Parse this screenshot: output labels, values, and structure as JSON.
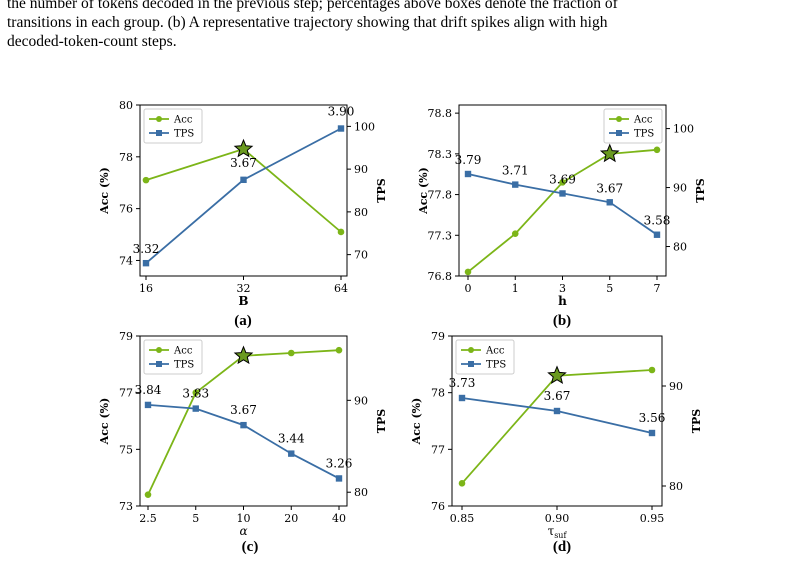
{
  "caption": {
    "lines": [
      "the number of tokens decoded in the previous step; percentages above boxes denote the fraction of",
      "transitions in each group. (b) A representative trajectory showing that drift spikes align with high",
      "decoded-token-count steps."
    ]
  },
  "colors": {
    "acc": "#7cb518",
    "tps": "#3a6ea5",
    "star_fill": "#6a9a20"
  },
  "chart_data": [
    {
      "type": "line",
      "panel_label": "(a)",
      "x_categories": [
        "16",
        "32",
        "64"
      ],
      "xlabel": "B",
      "ylabel_left": "Acc (%)",
      "ylabel_right": "TPS",
      "ylim_left": [
        73.4,
        80.0
      ],
      "yticks_left": [
        "74",
        "76",
        "78",
        "80"
      ],
      "ylim_right": [
        65.0,
        105.0
      ],
      "yticks_right": [
        "70",
        "80",
        "90",
        "100"
      ],
      "legend": "top-left",
      "series": [
        {
          "name": "Acc",
          "axis": "left",
          "marker": "circle",
          "values": [
            77.1,
            78.3,
            75.1
          ]
        },
        {
          "name": "TPS",
          "axis": "right",
          "marker": "square",
          "values": [
            68.0,
            87.5,
            99.5
          ]
        }
      ],
      "tps_labels": [
        "3.32",
        "3.67",
        "3.90"
      ],
      "star_index": 1
    },
    {
      "type": "line",
      "panel_label": "(b)",
      "x_categories": [
        "0",
        "1",
        "3",
        "5",
        "7"
      ],
      "xlabel": "h",
      "ylabel_left": "Acc (%)",
      "ylabel_right": "TPS",
      "ylim_left": [
        76.8,
        78.9
      ],
      "yticks_left": [
        "76.8",
        "77.3",
        "77.8",
        "78.3",
        "78.8"
      ],
      "ylim_right": [
        75.0,
        104.0
      ],
      "yticks_right": [
        "80",
        "90",
        "100"
      ],
      "legend": "top-right",
      "series": [
        {
          "name": "Acc",
          "axis": "left",
          "marker": "circle",
          "values": [
            76.85,
            77.32,
            77.95,
            78.3,
            78.35
          ]
        },
        {
          "name": "TPS",
          "axis": "right",
          "marker": "square",
          "values": [
            92.3,
            90.5,
            89.0,
            87.5,
            82.0
          ]
        }
      ],
      "tps_labels": [
        "3.79",
        "3.71",
        "3.69",
        "3.67",
        "3.58"
      ],
      "star_index": 3
    },
    {
      "type": "line",
      "panel_label": "(c)",
      "x_categories": [
        "2.5",
        "5",
        "10",
        "20",
        "40"
      ],
      "xlabel": "α",
      "ylabel_left": "Acc (%)",
      "ylabel_right": "TPS",
      "ylim_left": [
        73.0,
        79.0
      ],
      "yticks_left": [
        "73",
        "75",
        "77",
        "79"
      ],
      "ylim_right": [
        78.5,
        97.0
      ],
      "yticks_right": [
        "80",
        "90"
      ],
      "legend": "top-left",
      "series": [
        {
          "name": "Acc",
          "axis": "left",
          "marker": "circle",
          "values": [
            73.4,
            77.0,
            78.3,
            78.4,
            78.5
          ]
        },
        {
          "name": "TPS",
          "axis": "right",
          "marker": "square",
          "values": [
            89.5,
            89.1,
            87.3,
            84.2,
            81.5
          ]
        }
      ],
      "tps_labels": [
        "3.84",
        "3.83",
        "3.67",
        "3.44",
        "3.26"
      ],
      "star_index": 2
    },
    {
      "type": "line",
      "panel_label": "(d)",
      "x_categories": [
        "0.85",
        "0.90",
        "0.95"
      ],
      "xlabel": "τsuf",
      "ylabel_left": "Acc (%)",
      "ylabel_right": "TPS",
      "ylim_left": [
        76.0,
        79.0
      ],
      "yticks_left": [
        "76",
        "77",
        "78",
        "79"
      ],
      "ylim_right": [
        78.0,
        95.0
      ],
      "yticks_right": [
        "80",
        "90"
      ],
      "legend": "top-left",
      "series": [
        {
          "name": "Acc",
          "axis": "left",
          "marker": "circle",
          "values": [
            76.4,
            78.3,
            78.4
          ]
        },
        {
          "name": "TPS",
          "axis": "right",
          "marker": "square",
          "values": [
            88.8,
            87.5,
            85.3
          ]
        }
      ],
      "tps_labels": [
        "3.73",
        "3.67",
        "3.56"
      ],
      "star_index": 1
    }
  ]
}
